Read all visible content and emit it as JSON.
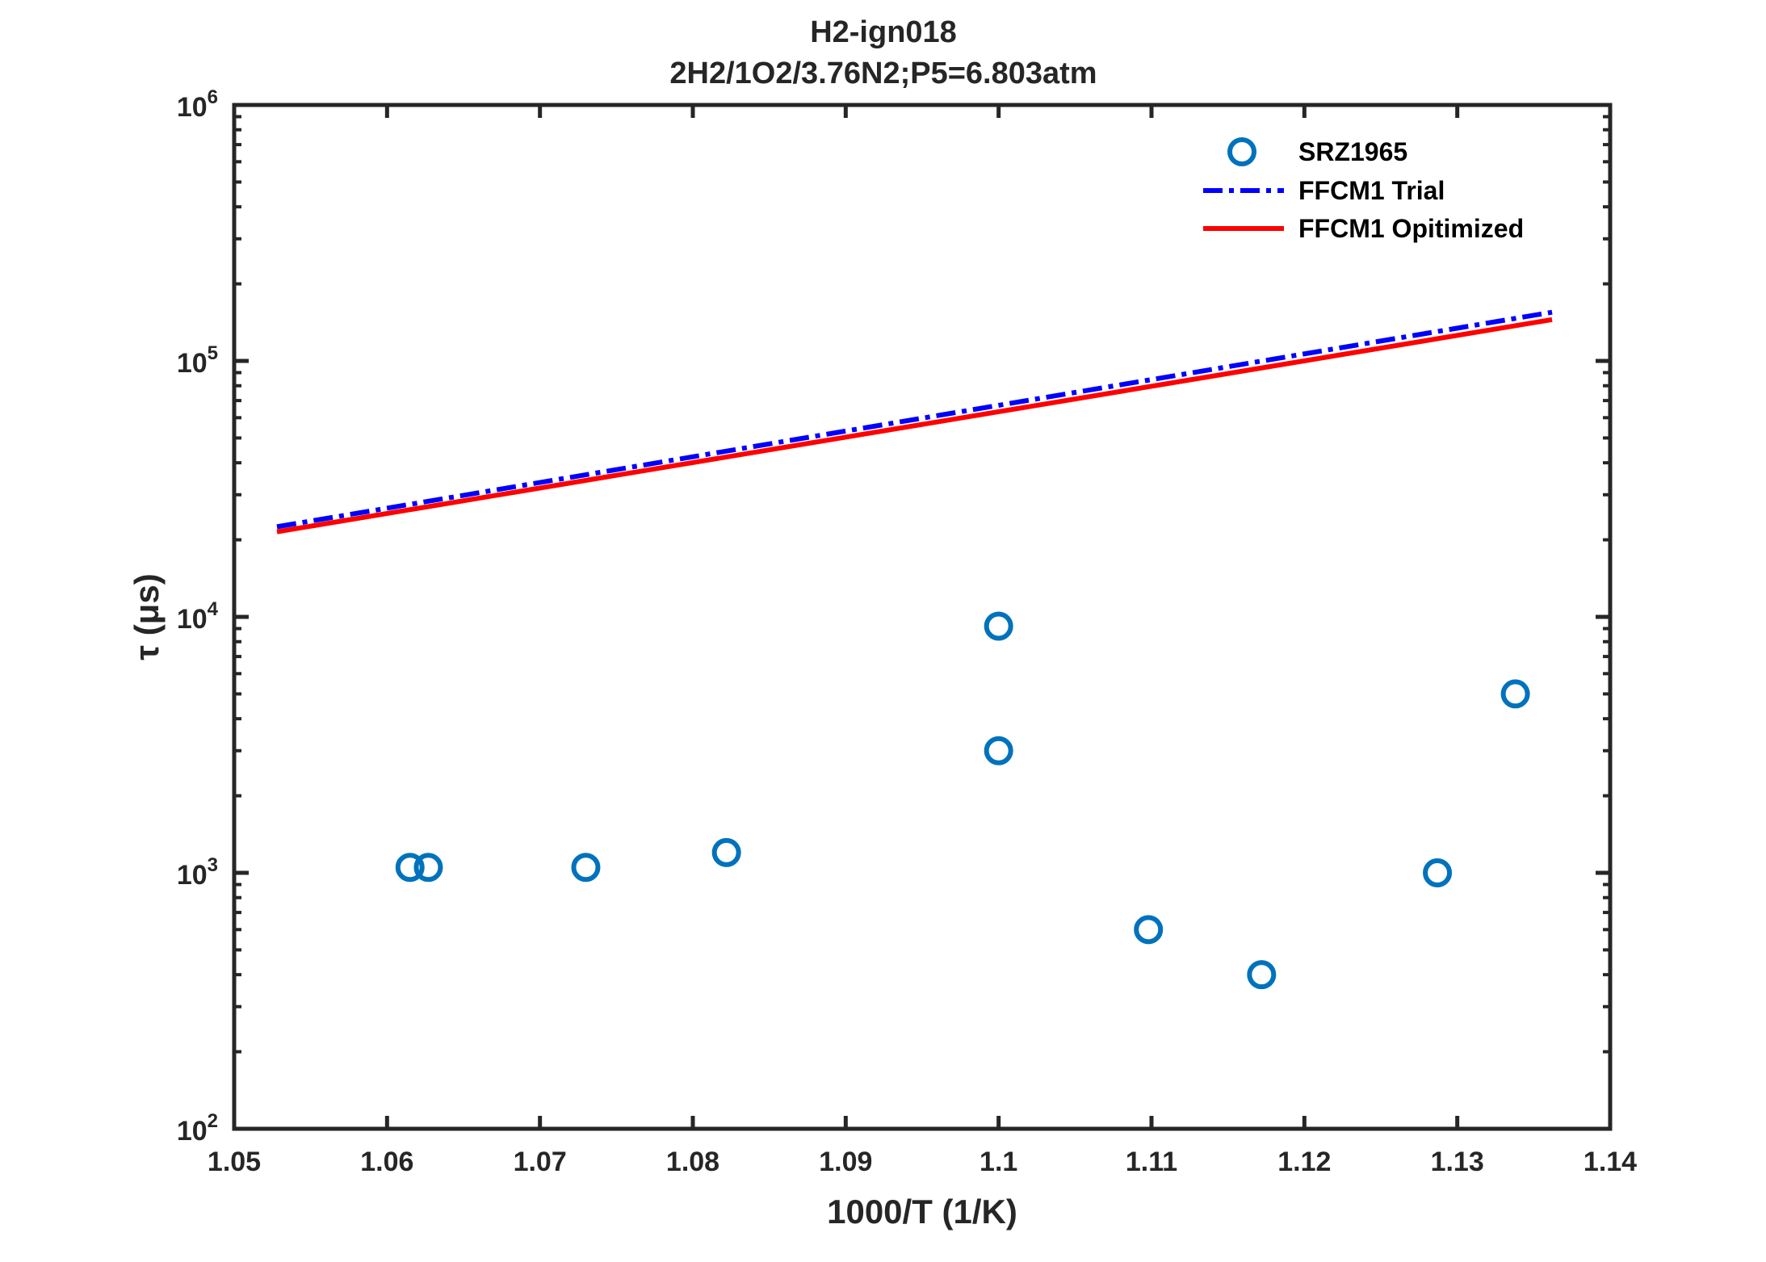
{
  "chart_data": {
    "type": "scatter",
    "title": "H2-ign018",
    "subtitle": "2H2/1O2/3.76N2;P5=6.803atm",
    "xlabel": "1000/T (1/K)",
    "ylabel": "τ (μs)",
    "xlim": [
      1.05,
      1.14
    ],
    "ylim": [
      100,
      1000000
    ],
    "yscale": "log",
    "grid": false,
    "legend_position": "top-right",
    "x_ticks": [
      "1.05",
      "1.06",
      "1.07",
      "1.08",
      "1.09",
      "1.1",
      "1.11",
      "1.12",
      "1.13",
      "1.14"
    ],
    "y_ticks": [
      {
        "value": 100,
        "base": "10",
        "exp": "2"
      },
      {
        "value": 1000,
        "base": "10",
        "exp": "3"
      },
      {
        "value": 10000,
        "base": "10",
        "exp": "4"
      },
      {
        "value": 100000,
        "base": "10",
        "exp": "5"
      },
      {
        "value": 1000000,
        "base": "10",
        "exp": "6"
      }
    ],
    "series": [
      {
        "name": "SRZ1965",
        "kind": "markers",
        "color": "#0072BD",
        "points": [
          {
            "x": 1.0615,
            "y": 1050
          },
          {
            "x": 1.0627,
            "y": 1050
          },
          {
            "x": 1.073,
            "y": 1050
          },
          {
            "x": 1.0822,
            "y": 1200
          },
          {
            "x": 1.1,
            "y": 9200
          },
          {
            "x": 1.1,
            "y": 3000
          },
          {
            "x": 1.1098,
            "y": 600
          },
          {
            "x": 1.1172,
            "y": 400
          },
          {
            "x": 1.1287,
            "y": 1000
          },
          {
            "x": 1.1338,
            "y": 5000
          }
        ]
      },
      {
        "name": "FFCM1 Trial",
        "kind": "dashdot",
        "color": "#0000FF",
        "points": [
          {
            "x": 1.0528,
            "y": 22500
          },
          {
            "x": 1.1362,
            "y": 155000
          }
        ]
      },
      {
        "name": "FFCM1 Opitimized",
        "kind": "solid",
        "color": "#FF0000",
        "points": [
          {
            "x": 1.0528,
            "y": 21500
          },
          {
            "x": 1.1362,
            "y": 145000
          }
        ]
      }
    ]
  }
}
